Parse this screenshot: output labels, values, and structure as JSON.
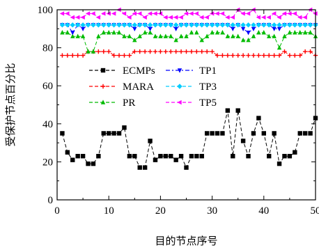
{
  "chart_data": {
    "type": "line",
    "xlabel": "目的节点序号",
    "ylabel": "受保护节点百分比",
    "xlim": [
      0,
      50
    ],
    "ylim": [
      0,
      100
    ],
    "xticks": [
      0,
      10,
      20,
      30,
      40,
      50
    ],
    "yticks": [
      0,
      20,
      40,
      60,
      80,
      100
    ],
    "grid": false,
    "legend_position": "center-left",
    "series": [
      {
        "name": "ECMPs",
        "color": "#000000",
        "marker": "square",
        "dash": "dash",
        "x": [
          1,
          2,
          3,
          4,
          5,
          6,
          7,
          8,
          9,
          10,
          11,
          12,
          13,
          14,
          15,
          16,
          17,
          18,
          19,
          20,
          21,
          22,
          23,
          24,
          25,
          26,
          27,
          28,
          29,
          30,
          31,
          32,
          33,
          34,
          35,
          36,
          37,
          38,
          39,
          40,
          41,
          42,
          43,
          44,
          45,
          46,
          47,
          48,
          49,
          50
        ],
        "values": [
          35,
          25,
          21,
          23,
          23,
          19,
          19,
          23,
          35,
          35,
          35,
          35,
          38,
          23,
          23,
          17,
          17,
          31,
          21,
          23,
          23,
          23,
          21,
          23,
          17,
          23,
          23,
          23,
          35,
          35,
          35,
          35,
          47,
          23,
          47,
          31,
          23,
          35,
          43,
          35,
          23,
          35,
          19,
          23,
          23,
          25,
          35,
          35,
          35,
          43
        ]
      },
      {
        "name": "MARA",
        "color": "#ff0000",
        "marker": "plus",
        "dash": "dash",
        "x": [
          1,
          2,
          3,
          4,
          5,
          6,
          7,
          8,
          9,
          10,
          11,
          12,
          13,
          14,
          15,
          16,
          17,
          18,
          19,
          20,
          21,
          22,
          23,
          24,
          25,
          26,
          27,
          28,
          29,
          30,
          31,
          32,
          33,
          34,
          35,
          36,
          37,
          38,
          39,
          40,
          41,
          42,
          43,
          44,
          45,
          46,
          47,
          48,
          49,
          50
        ],
        "values": [
          76,
          76,
          76,
          76,
          76,
          78,
          78,
          78,
          78,
          78,
          76,
          76,
          76,
          76,
          78,
          78,
          78,
          78,
          78,
          78,
          78,
          78,
          78,
          78,
          78,
          78,
          78,
          78,
          78,
          78,
          76,
          76,
          76,
          76,
          76,
          76,
          76,
          76,
          76,
          76,
          76,
          76,
          76,
          78,
          76,
          76,
          76,
          78,
          78,
          76
        ]
      },
      {
        "name": "PR",
        "color": "#00bb00",
        "marker": "triangle-up",
        "dash": "dash",
        "x": [
          1,
          2,
          3,
          4,
          5,
          6,
          7,
          8,
          9,
          10,
          11,
          12,
          13,
          14,
          15,
          16,
          17,
          18,
          19,
          20,
          21,
          22,
          23,
          24,
          25,
          26,
          27,
          28,
          29,
          30,
          31,
          32,
          33,
          34,
          35,
          36,
          37,
          38,
          39,
          40,
          41,
          42,
          43,
          44,
          45,
          46,
          47,
          48,
          49,
          50
        ],
        "values": [
          88,
          88,
          86,
          86,
          86,
          78,
          78,
          86,
          88,
          88,
          88,
          88,
          86,
          86,
          84,
          86,
          88,
          88,
          86,
          86,
          86,
          86,
          84,
          86,
          86,
          88,
          88,
          84,
          86,
          88,
          88,
          88,
          86,
          86,
          86,
          84,
          84,
          86,
          88,
          88,
          86,
          86,
          80,
          86,
          88,
          88,
          88,
          88,
          88,
          86
        ]
      },
      {
        "name": "TP1",
        "color": "#0000ff",
        "marker": "triangle-down",
        "dash": "dashdot",
        "x": [
          1,
          2,
          3,
          4,
          5,
          6,
          7,
          8,
          9,
          10,
          11,
          12,
          13,
          14,
          15,
          16,
          17,
          18,
          19,
          20,
          21,
          22,
          23,
          24,
          25,
          26,
          27,
          28,
          29,
          30,
          31,
          32,
          33,
          34,
          35,
          36,
          37,
          38,
          39,
          40,
          41,
          42,
          43,
          44,
          45,
          46,
          47,
          48,
          49,
          50
        ],
        "values": [
          92,
          92,
          88,
          92,
          90,
          92,
          92,
          92,
          92,
          92,
          92,
          92,
          92,
          92,
          90,
          92,
          92,
          90,
          92,
          92,
          92,
          92,
          90,
          92,
          92,
          92,
          92,
          92,
          92,
          92,
          92,
          92,
          92,
          90,
          92,
          90,
          88,
          90,
          92,
          92,
          92,
          90,
          90,
          92,
          92,
          92,
          92,
          92,
          92,
          92
        ]
      },
      {
        "name": "TP3",
        "color": "#00ccff",
        "marker": "diamond",
        "dash": "dash",
        "x": [
          1,
          2,
          3,
          4,
          5,
          6,
          7,
          8,
          9,
          10,
          11,
          12,
          13,
          14,
          15,
          16,
          17,
          18,
          19,
          20,
          21,
          22,
          23,
          24,
          25,
          26,
          27,
          28,
          29,
          30,
          31,
          32,
          33,
          34,
          35,
          36,
          37,
          38,
          39,
          40,
          41,
          42,
          43,
          44,
          45,
          46,
          47,
          48,
          49,
          50
        ],
        "values": [
          92,
          92,
          92,
          92,
          92,
          92,
          92,
          92,
          92,
          92,
          92,
          92,
          92,
          92,
          92,
          92,
          92,
          92,
          92,
          92,
          92,
          92,
          92,
          92,
          92,
          92,
          92,
          92,
          92,
          92,
          92,
          92,
          92,
          92,
          92,
          92,
          92,
          92,
          92,
          92,
          92,
          92,
          92,
          92,
          92,
          92,
          92,
          92,
          92,
          92
        ]
      },
      {
        "name": "TP5",
        "color": "#ff00ff",
        "marker": "triangle-left",
        "dash": "dash",
        "x": [
          1,
          2,
          3,
          4,
          5,
          6,
          7,
          8,
          9,
          10,
          11,
          12,
          13,
          14,
          15,
          16,
          17,
          18,
          19,
          20,
          21,
          22,
          23,
          24,
          25,
          26,
          27,
          28,
          29,
          30,
          31,
          32,
          33,
          34,
          35,
          36,
          37,
          38,
          39,
          40,
          41,
          42,
          43,
          44,
          45,
          46,
          47,
          48,
          49,
          50
        ],
        "values": [
          98,
          98,
          96,
          96,
          96,
          98,
          98,
          96,
          98,
          98,
          98,
          100,
          98,
          96,
          98,
          98,
          96,
          98,
          98,
          98,
          96,
          96,
          96,
          96,
          98,
          98,
          98,
          96,
          96,
          98,
          98,
          98,
          96,
          96,
          100,
          98,
          98,
          100,
          96,
          96,
          96,
          98,
          96,
          98,
          98,
          98,
          96,
          96,
          100,
          98
        ]
      }
    ]
  }
}
